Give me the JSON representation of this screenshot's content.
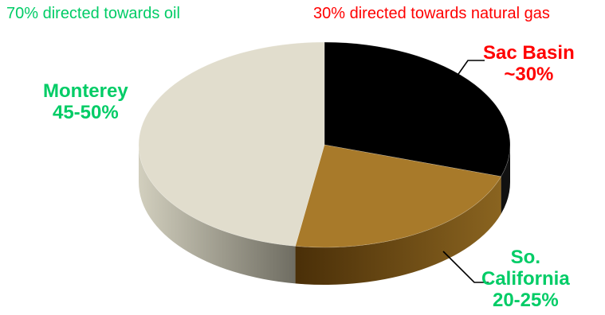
{
  "headers": {
    "oil": {
      "text": "70% directed towards oil",
      "color": "#00cc66"
    },
    "gas": {
      "text": "30% directed towards natural gas",
      "color": "#ff0000"
    }
  },
  "chart_data": {
    "type": "pie",
    "style": "3d",
    "slices": [
      {
        "key": "sac",
        "name": "Sac Basin",
        "value_label": "~30%",
        "value": 30,
        "color": "#000000",
        "side_color": "#111111",
        "label_color": "#ff0000"
      },
      {
        "key": "socal",
        "name": "So. California",
        "name_lines": [
          "So.",
          "California"
        ],
        "value_label": "20-25%",
        "value": 22.5,
        "color": "#a87a2a",
        "side_color": "#5e3e10",
        "label_color": "#00cc66"
      },
      {
        "key": "monterey",
        "name": "Monterey",
        "value_label": "45-50%",
        "value": 47.5,
        "color": "#e1ddcd",
        "side_color": "#a8a595",
        "label_color": "#00cc66"
      }
    ]
  }
}
